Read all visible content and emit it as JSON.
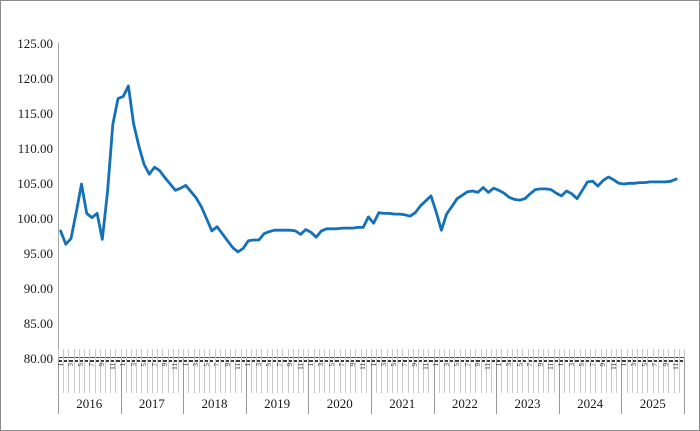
{
  "chart_data": {
    "type": "line",
    "title": "",
    "legend": "none",
    "grid": "off",
    "yaxis": {
      "tick_labels": [
        "125.00",
        "120.00",
        "115.00",
        "110.00",
        "105.00",
        "100.00",
        "95.00",
        "90.00",
        "85.00",
        "80.00"
      ],
      "min": 80,
      "max": 125,
      "step": 5
    },
    "xaxis": {
      "years": [
        "2016",
        "2017",
        "2018",
        "2019",
        "2020",
        "2021",
        "2022",
        "2023",
        "2024",
        "2025"
      ],
      "months_per_year": 12,
      "odd_month_tick_labels": [
        "1",
        "3",
        "5",
        "7",
        "9",
        "11"
      ],
      "range": "2016-01 to 2025-11"
    },
    "series": [
      {
        "name": "monthly-index",
        "color": "#1470B8",
        "start": "2016-01",
        "values": [
          98.3,
          96.4,
          97.2,
          101.0,
          105.0,
          100.8,
          100.2,
          100.8,
          97.1,
          104.0,
          113.5,
          117.2,
          117.5,
          119.0,
          113.6,
          110.4,
          107.8,
          106.4,
          107.4,
          106.9,
          105.9,
          105.0,
          104.1,
          104.4,
          104.8,
          103.9,
          103.0,
          101.7,
          100.0,
          98.3,
          98.9,
          97.9,
          96.9,
          95.9,
          95.3,
          95.8,
          96.9,
          97.0,
          97.0,
          97.9,
          98.2,
          98.4,
          98.4,
          98.4,
          98.4,
          98.3,
          97.8,
          98.5,
          98.1,
          97.4,
          98.3,
          98.6,
          98.6,
          98.6,
          98.7,
          98.7,
          98.7,
          98.8,
          98.8,
          100.3,
          99.4,
          100.9,
          100.8,
          100.8,
          100.7,
          100.7,
          100.6,
          100.4,
          100.9,
          101.9,
          102.6,
          103.3,
          101.0,
          98.4,
          100.7,
          101.8,
          102.9,
          103.4,
          103.9,
          104.0,
          103.8,
          104.5,
          103.8,
          104.4,
          104.1,
          103.7,
          103.1,
          102.8,
          102.7,
          102.9,
          103.6,
          104.2,
          104.3,
          104.3,
          104.2,
          103.7,
          103.3,
          104.0,
          103.6,
          102.9,
          104.1,
          105.3,
          105.4,
          104.7,
          105.5,
          106.0,
          105.6,
          105.1,
          105.0,
          105.1,
          105.1,
          105.2,
          105.2,
          105.3,
          105.3,
          105.3,
          105.3,
          105.4,
          105.7
        ]
      }
    ]
  },
  "colors": {
    "line": "#1470B8",
    "axis_line": "#4A4A4A",
    "y_axis_line": "#A6A6A6",
    "month_grid": "#C9C9C9",
    "year_separator": "#9A9A9A",
    "text": "#1A1A1A",
    "outer_border": "#8C8C8C"
  }
}
